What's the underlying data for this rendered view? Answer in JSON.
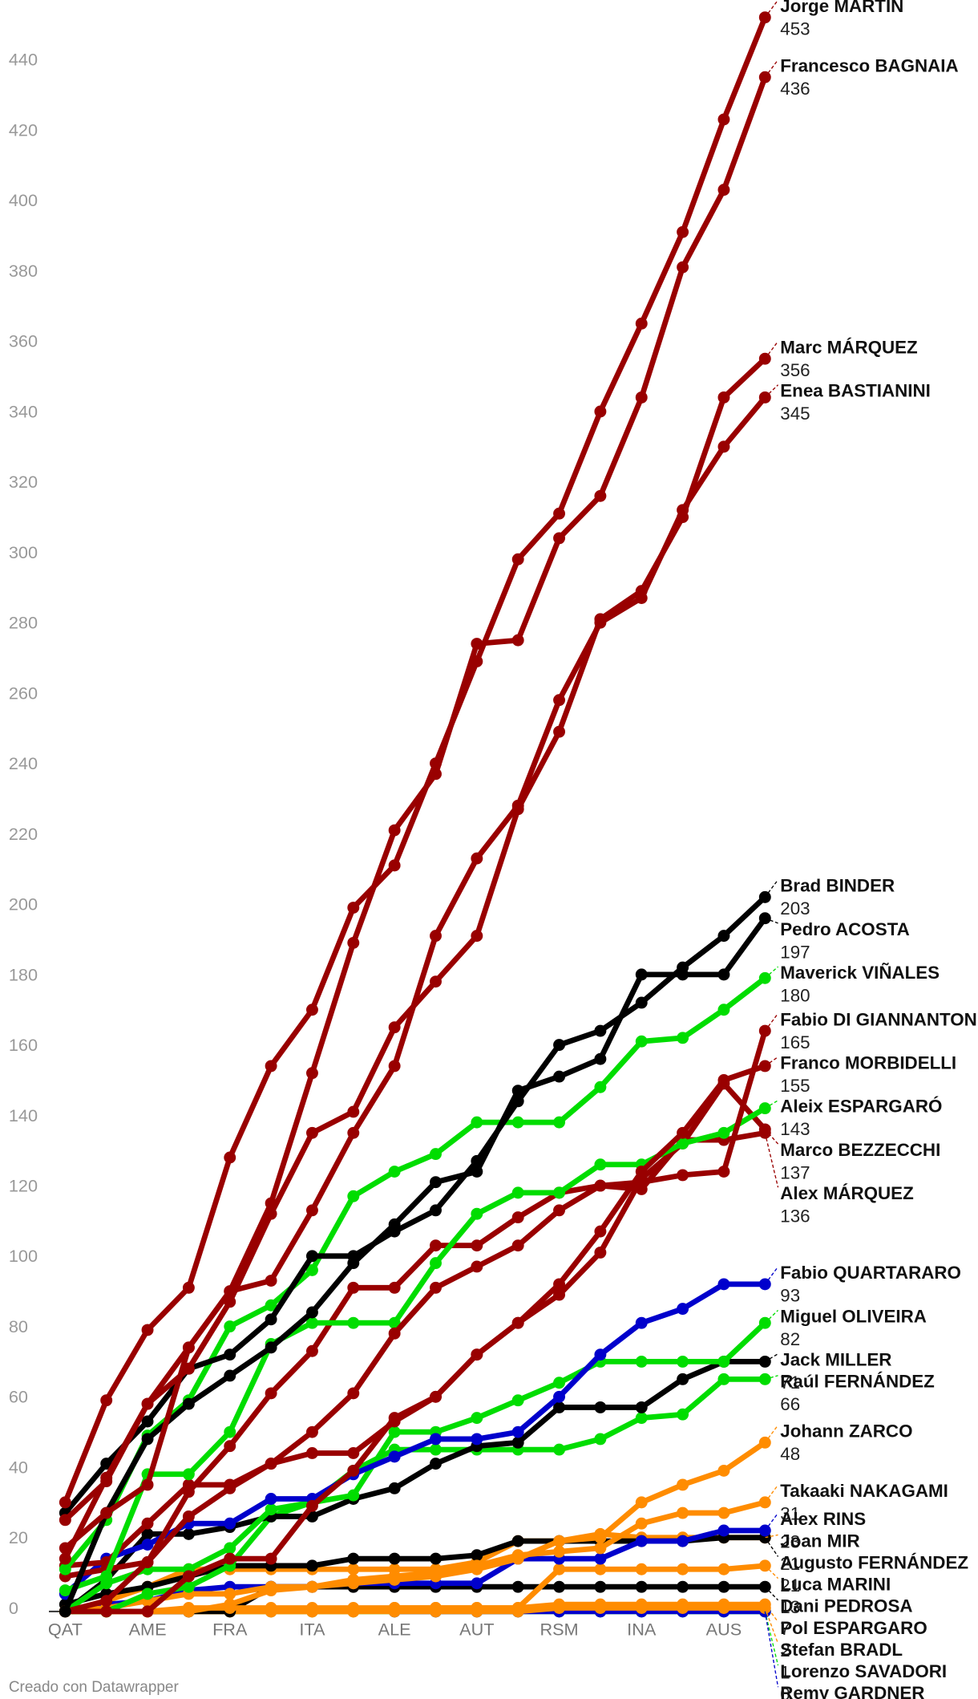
{
  "chart_data": {
    "type": "line",
    "categories": [
      "QAT",
      null,
      "AME",
      null,
      "FRA",
      null,
      "ITA",
      null,
      "ALE",
      null,
      "AUT",
      null,
      "RSM",
      null,
      "INA",
      null,
      "AUS",
      null
    ],
    "ylim": [
      0,
      453
    ],
    "yticks": [
      0,
      20,
      40,
      60,
      80,
      100,
      120,
      140,
      160,
      180,
      200,
      220,
      240,
      260,
      280,
      300,
      320,
      340,
      360,
      380,
      400,
      420,
      440
    ],
    "credit": "Creado con Datawrapper",
    "series": [
      {
        "name": "Lorenzo SAVADORI",
        "color": "#00dd00",
        "values": [
          0,
          0,
          0,
          0,
          0,
          0,
          0,
          0,
          0,
          0,
          0,
          0,
          0,
          0,
          0,
          0,
          0,
          0
        ]
      },
      {
        "name": "Remy GARDNER",
        "color": "#0000cc",
        "values": [
          null,
          null,
          null,
          null,
          null,
          null,
          null,
          null,
          0,
          0,
          0,
          0,
          0,
          0,
          0,
          0,
          0,
          0
        ]
      },
      {
        "name": "Stefan BRADL",
        "color": "#ff8c00",
        "values": [
          0,
          0,
          0,
          0,
          0,
          0,
          0,
          0,
          0,
          0,
          0,
          0,
          1,
          1,
          1,
          1,
          1,
          1
        ]
      },
      {
        "name": "Pol ESPARGARO",
        "color": "#ff8c00",
        "values": [
          0,
          0,
          0,
          0,
          0,
          0,
          0,
          0,
          1,
          1,
          1,
          1,
          2,
          2,
          2,
          2,
          2,
          2
        ]
      },
      {
        "name": "Dani PEDROSA",
        "color": "#000000",
        "values": [
          0,
          0,
          0,
          0,
          0,
          7,
          7,
          7,
          7,
          7,
          7,
          7,
          7,
          7,
          7,
          7,
          7,
          7
        ]
      },
      {
        "name": "Joan MIR",
        "color": "#ff8c00",
        "values": [
          0,
          3,
          7,
          12,
          12,
          12,
          12,
          12,
          12,
          12,
          14,
          20,
          20,
          22,
          21,
          21,
          21,
          21
        ]
      },
      {
        "name": "Luca MARINI",
        "color": "#ff8c00",
        "values": [
          0,
          0,
          0,
          1,
          1,
          1,
          1,
          1,
          1,
          1,
          1,
          1,
          12,
          12,
          12,
          12,
          12,
          13
        ]
      },
      {
        "name": "Augusto FERNÁNDEZ",
        "color": "#000000",
        "values": [
          2,
          5,
          7,
          10,
          13,
          13,
          13,
          15,
          15,
          15,
          16,
          20,
          20,
          20,
          20,
          20,
          21,
          21
        ]
      },
      {
        "name": "Alex RINS",
        "color": "#0000cc",
        "values": [
          0,
          2,
          3,
          6,
          7,
          7,
          7,
          8,
          8,
          8,
          8,
          15,
          15,
          15,
          20,
          20,
          23,
          23
        ]
      },
      {
        "name": "Takaaki NAKAGAMI",
        "color": "#ff8c00",
        "values": [
          0,
          1,
          3,
          5,
          5,
          7,
          7,
          9,
          10,
          11,
          13,
          16,
          17,
          18,
          25,
          28,
          28,
          31
        ]
      },
      {
        "name": "Johann ZARCO",
        "color": "#ff8c00",
        "values": [
          0,
          0,
          0,
          0,
          2,
          6,
          7,
          8,
          9,
          10,
          12,
          15,
          20,
          21,
          31,
          36,
          40,
          48
        ]
      },
      {
        "name": "Raúl FERNÁNDEZ",
        "color": "#00dd00",
        "values": [
          0,
          0,
          5,
          7,
          13,
          27,
          31,
          40,
          46,
          46,
          46,
          46,
          46,
          49,
          55,
          56,
          66,
          66
        ]
      },
      {
        "name": "Jack MILLER",
        "color": "#000000",
        "values": [
          0,
          9,
          22,
          22,
          24,
          27,
          27,
          32,
          35,
          42,
          47,
          48,
          58,
          58,
          58,
          66,
          71,
          71
        ]
      },
      {
        "name": "Miguel OLIVEIRA",
        "color": "#00dd00",
        "values": [
          0,
          8,
          12,
          12,
          18,
          29,
          31,
          33,
          51,
          51,
          55,
          60,
          65,
          71,
          71,
          71,
          71,
          82
        ]
      },
      {
        "name": "Fabio QUARTARARO",
        "color": "#0000cc",
        "values": [
          5,
          15,
          19,
          25,
          25,
          32,
          32,
          39,
          44,
          49,
          49,
          51,
          61,
          73,
          82,
          86,
          93,
          93
        ]
      },
      {
        "name": "Alex MÁRQUEZ",
        "color": "#990000",
        "values": [
          10,
          12,
          14,
          34,
          47,
          62,
          74,
          92,
          92,
          104,
          104,
          112,
          119,
          121,
          120,
          134,
          134,
          136
        ]
      },
      {
        "name": "Marco BEZZECCHI",
        "color": "#990000",
        "values": [
          13,
          14,
          25,
          36,
          36,
          42,
          45,
          45,
          54,
          61,
          73,
          82,
          90,
          102,
          123,
          133,
          150,
          137
        ]
      },
      {
        "name": "Aleix ESPARGARÓ",
        "color": "#00dd00",
        "values": [
          6,
          10,
          39,
          39,
          51,
          76,
          82,
          82,
          82,
          99,
          113,
          119,
          119,
          127,
          127,
          133,
          136,
          143
        ]
      },
      {
        "name": "Franco MORBIDELLI",
        "color": "#990000",
        "values": [
          0,
          0,
          0,
          10,
          15,
          15,
          30,
          40,
          55,
          61,
          73,
          82,
          93,
          108,
          125,
          136,
          151,
          155
        ]
      },
      {
        "name": "Fabio DI GIANNANTONIO",
        "color": "#990000",
        "values": [
          0,
          3,
          14,
          27,
          35,
          42,
          51,
          62,
          79,
          92,
          98,
          104,
          114,
          121,
          122,
          124,
          125,
          165
        ]
      },
      {
        "name": "Maverick VIÑALES",
        "color": "#00dd00",
        "values": [
          12,
          26,
          50,
          60,
          81,
          87,
          97,
          118,
          125,
          130,
          139,
          139,
          139,
          149,
          162,
          163,
          171,
          180
        ]
      },
      {
        "name": "Pedro ACOSTA",
        "color": "#000000",
        "values": [
          0,
          28,
          49,
          59,
          67,
          75,
          85,
          99,
          110,
          122,
          125,
          148,
          152,
          157,
          181,
          181,
          181,
          197
        ]
      },
      {
        "name": "Brad BINDER",
        "color": "#000000",
        "values": [
          28,
          42,
          54,
          69,
          73,
          83,
          101,
          101,
          108,
          114,
          128,
          145,
          161,
          165,
          173,
          183,
          192,
          203
        ]
      },
      {
        "name": "Enea BASTIANINI",
        "color": "#990000",
        "values": [
          18,
          28,
          36,
          75,
          91,
          94,
          114,
          136,
          155,
          192,
          214,
          229,
          259,
          281,
          288,
          313,
          331,
          345
        ]
      },
      {
        "name": "Marc MÁRQUEZ",
        "color": "#990000",
        "values": [
          15,
          38,
          59,
          69,
          88,
          113,
          136,
          142,
          166,
          179,
          192,
          228,
          250,
          282,
          290,
          311,
          345,
          356
        ]
      },
      {
        "name": "Francesco BAGNAIA",
        "color": "#990000",
        "values": [
          26,
          37,
          59,
          75,
          91,
          116,
          153,
          190,
          222,
          238,
          275,
          276,
          305,
          317,
          345,
          382,
          404,
          436
        ]
      },
      {
        "name": "Jorge MARTÍN",
        "color": "#990000",
        "values": [
          31,
          60,
          80,
          92,
          129,
          155,
          171,
          200,
          212,
          241,
          270,
          299,
          312,
          341,
          366,
          392,
          424,
          453
        ]
      }
    ]
  }
}
